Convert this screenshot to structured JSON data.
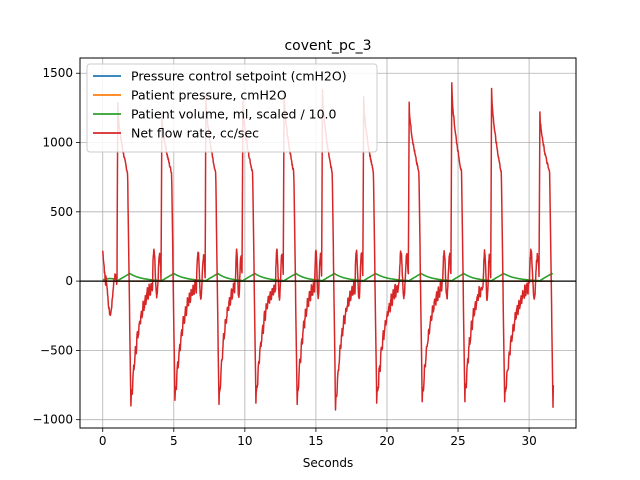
{
  "chart_data": {
    "type": "line",
    "title": "covent_pc_3",
    "xlabel": "Seconds",
    "ylabel": "",
    "xlim": [
      -1.6,
      33.3
    ],
    "ylim": [
      -1060,
      1610
    ],
    "xticks": [
      0,
      5,
      10,
      15,
      20,
      25,
      30
    ],
    "yticks": [
      -1000,
      -500,
      0,
      500,
      1000,
      1500
    ],
    "ytick_labels": [
      "−1000",
      "−500",
      "0",
      "500",
      "1000",
      "1500"
    ],
    "grid": true,
    "legend_position": "upper-left",
    "zero_line": true,
    "breath_starts": [
      1.0,
      4.1,
      7.2,
      9.8,
      12.7,
      15.4,
      18.3,
      21.5,
      24.5,
      27.3,
      30.7
    ],
    "peak_values": [
      1280,
      1210,
      1340,
      1300,
      1360,
      1380,
      1330,
      1290,
      1430,
      1390,
      1220
    ],
    "trough_values": [
      -900,
      -860,
      -890,
      -880,
      -890,
      -930,
      -880,
      -870,
      -870,
      -870,
      -910
    ],
    "series": [
      {
        "name": "Pressure control setpoint (cmH2O)",
        "color": "#1f77b4",
        "values": [
          0
        ]
      },
      {
        "name": "Patient pressure, cmH2O",
        "color": "#ff7f0e",
        "values": [
          0
        ]
      },
      {
        "name": "Patient volume, ml, scaled / 10.0",
        "color": "#2ca02c",
        "min": 0,
        "max": 55
      },
      {
        "name": "Net flow rate, cc/sec",
        "color": "#d62728",
        "min": -930,
        "max": 1430
      }
    ]
  }
}
